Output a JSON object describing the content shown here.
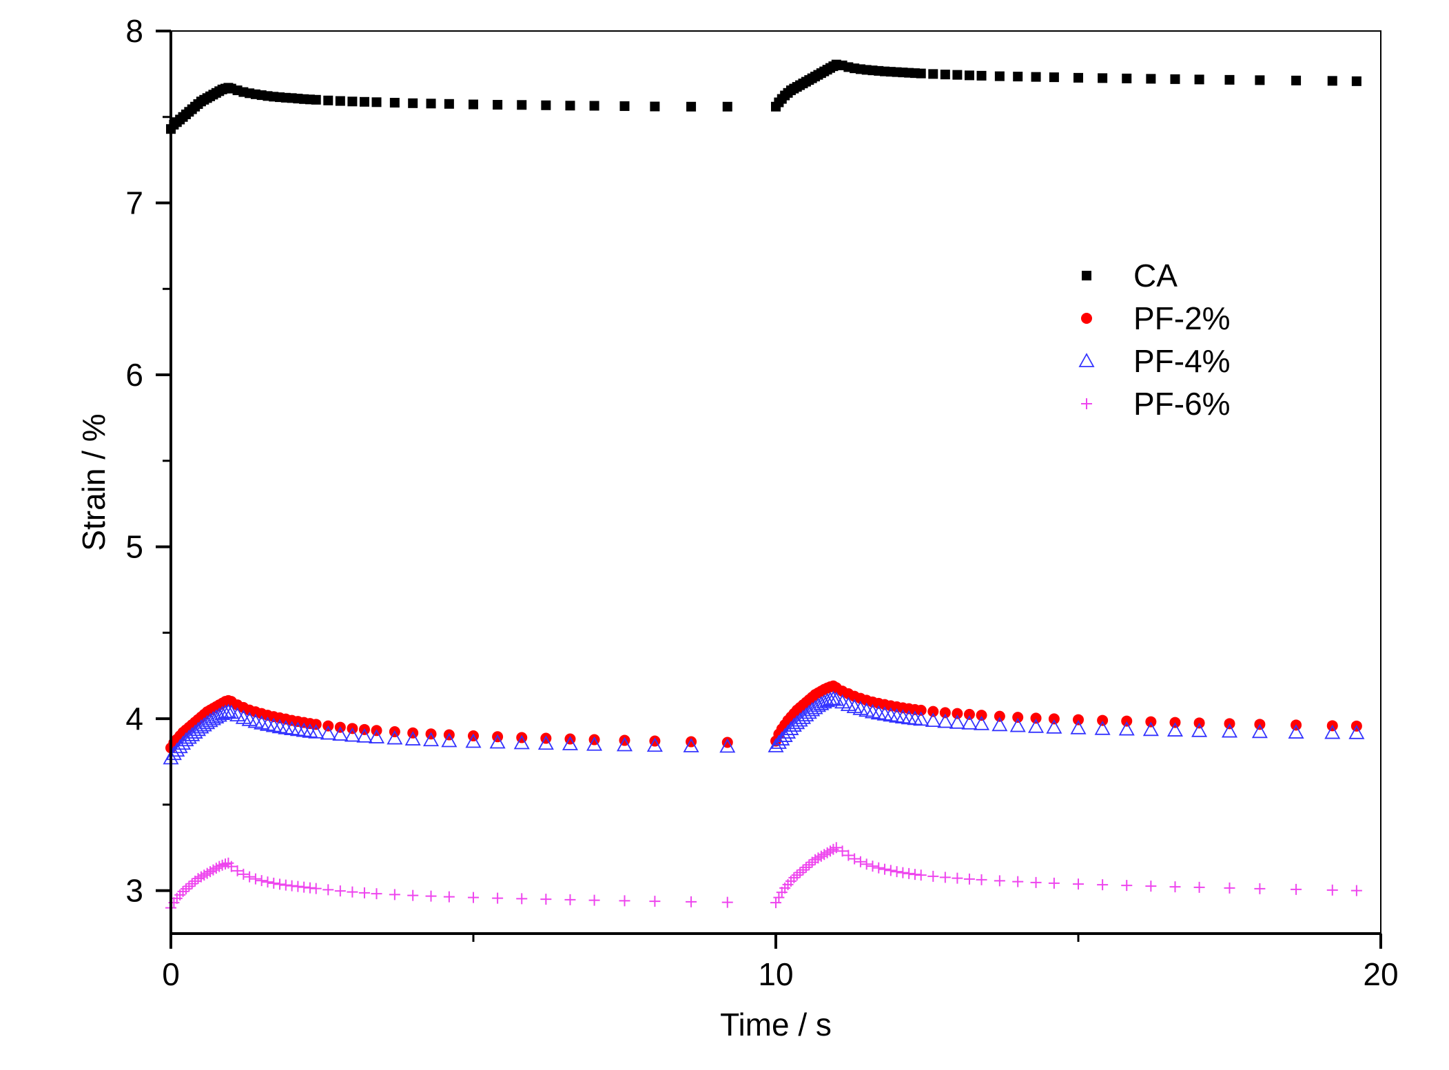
{
  "chart_data": {
    "type": "scatter",
    "title": "",
    "xlabel": "Time / s",
    "ylabel": "Strain / %",
    "xlim": [
      0,
      20
    ],
    "ylim": [
      2.75,
      8
    ],
    "xticks": [
      0,
      10,
      20
    ],
    "yticks": [
      3,
      4,
      5,
      6,
      7,
      8
    ],
    "legend_position": "top-right",
    "series": [
      {
        "name": "CA",
        "marker": "square",
        "color": "#000000",
        "x": [
          0.0,
          0.05,
          0.1,
          0.15,
          0.2,
          0.25,
          0.3,
          0.35,
          0.4,
          0.45,
          0.5,
          0.55,
          0.6,
          0.65,
          0.7,
          0.75,
          0.8,
          0.85,
          0.9,
          0.95,
          1.0,
          1.1,
          1.2,
          1.3,
          1.4,
          1.5,
          1.6,
          1.7,
          1.8,
          1.9,
          2.0,
          2.1,
          2.2,
          2.3,
          2.4,
          2.6,
          2.8,
          3.0,
          3.2,
          3.4,
          3.7,
          4.0,
          4.3,
          4.6,
          5.0,
          5.4,
          5.8,
          6.2,
          6.6,
          7.0,
          7.5,
          8.0,
          8.6,
          9.2,
          10.0,
          10.05,
          10.1,
          10.15,
          10.2,
          10.25,
          10.3,
          10.35,
          10.4,
          10.45,
          10.5,
          10.55,
          10.6,
          10.65,
          10.7,
          10.75,
          10.8,
          10.85,
          10.9,
          10.95,
          11.0,
          11.1,
          11.2,
          11.3,
          11.4,
          11.5,
          11.6,
          11.7,
          11.8,
          11.9,
          12.0,
          12.1,
          12.2,
          12.3,
          12.4,
          12.6,
          12.8,
          13.0,
          13.2,
          13.4,
          13.7,
          14.0,
          14.3,
          14.6,
          15.0,
          15.4,
          15.8,
          16.2,
          16.6,
          17.0,
          17.5,
          18.0,
          18.6,
          19.2,
          19.6
        ],
        "values": [
          7.43,
          7.455,
          7.47,
          7.485,
          7.5,
          7.515,
          7.53,
          7.545,
          7.56,
          7.575,
          7.59,
          7.6,
          7.61,
          7.62,
          7.63,
          7.64,
          7.65,
          7.66,
          7.665,
          7.67,
          7.665,
          7.655,
          7.645,
          7.638,
          7.632,
          7.627,
          7.622,
          7.618,
          7.615,
          7.612,
          7.61,
          7.607,
          7.604,
          7.602,
          7.6,
          7.596,
          7.593,
          7.59,
          7.588,
          7.586,
          7.583,
          7.58,
          7.578,
          7.576,
          7.573,
          7.571,
          7.57,
          7.568,
          7.566,
          7.565,
          7.563,
          7.561,
          7.56,
          7.56,
          7.56,
          7.585,
          7.605,
          7.625,
          7.64,
          7.655,
          7.665,
          7.675,
          7.685,
          7.695,
          7.705,
          7.715,
          7.725,
          7.735,
          7.745,
          7.755,
          7.765,
          7.775,
          7.785,
          7.795,
          7.805,
          7.8,
          7.79,
          7.783,
          7.778,
          7.774,
          7.771,
          7.768,
          7.765,
          7.763,
          7.761,
          7.759,
          7.757,
          7.755,
          7.753,
          7.75,
          7.747,
          7.745,
          7.742,
          7.74,
          7.737,
          7.735,
          7.733,
          7.731,
          7.728,
          7.726,
          7.724,
          7.722,
          7.72,
          7.718,
          7.716,
          7.714,
          7.712,
          7.71,
          7.708
        ]
      },
      {
        "name": "PF-2%",
        "marker": "circle",
        "color": "#ff0000",
        "x": [
          0.0,
          0.05,
          0.1,
          0.15,
          0.2,
          0.25,
          0.3,
          0.35,
          0.4,
          0.45,
          0.5,
          0.55,
          0.6,
          0.65,
          0.7,
          0.75,
          0.8,
          0.85,
          0.9,
          0.95,
          1.0,
          1.1,
          1.2,
          1.3,
          1.4,
          1.5,
          1.6,
          1.7,
          1.8,
          1.9,
          2.0,
          2.1,
          2.2,
          2.3,
          2.4,
          2.6,
          2.8,
          3.0,
          3.2,
          3.4,
          3.7,
          4.0,
          4.3,
          4.6,
          5.0,
          5.4,
          5.8,
          6.2,
          6.6,
          7.0,
          7.5,
          8.0,
          8.6,
          9.2,
          10.0,
          10.05,
          10.1,
          10.15,
          10.2,
          10.25,
          10.3,
          10.35,
          10.4,
          10.45,
          10.5,
          10.55,
          10.6,
          10.65,
          10.7,
          10.75,
          10.8,
          10.85,
          10.9,
          10.95,
          11.0,
          11.1,
          11.2,
          11.3,
          11.4,
          11.5,
          11.6,
          11.7,
          11.8,
          11.9,
          12.0,
          12.1,
          12.2,
          12.3,
          12.4,
          12.6,
          12.8,
          13.0,
          13.2,
          13.4,
          13.7,
          14.0,
          14.3,
          14.6,
          15.0,
          15.4,
          15.8,
          16.2,
          16.6,
          17.0,
          17.5,
          18.0,
          18.6,
          19.2,
          19.6
        ],
        "values": [
          3.83,
          3.86,
          3.88,
          3.9,
          3.92,
          3.935,
          3.95,
          3.965,
          3.98,
          3.995,
          4.01,
          4.025,
          4.04,
          4.05,
          4.06,
          4.07,
          4.08,
          4.09,
          4.1,
          4.105,
          4.1,
          4.08,
          4.065,
          4.05,
          4.04,
          4.03,
          4.02,
          4.012,
          4.005,
          3.998,
          3.99,
          3.984,
          3.978,
          3.972,
          3.967,
          3.958,
          3.95,
          3.943,
          3.937,
          3.931,
          3.924,
          3.917,
          3.911,
          3.906,
          3.9,
          3.895,
          3.89,
          3.886,
          3.882,
          3.878,
          3.874,
          3.87,
          3.866,
          3.862,
          3.87,
          3.91,
          3.94,
          3.965,
          3.99,
          4.01,
          4.03,
          4.05,
          4.065,
          4.08,
          4.095,
          4.11,
          4.125,
          4.14,
          4.15,
          4.16,
          4.17,
          4.178,
          4.185,
          4.19,
          4.18,
          4.16,
          4.145,
          4.13,
          4.118,
          4.107,
          4.097,
          4.089,
          4.082,
          4.075,
          4.069,
          4.063,
          4.058,
          4.053,
          4.049,
          4.042,
          4.035,
          4.03,
          4.025,
          4.02,
          4.014,
          4.008,
          4.003,
          3.999,
          3.994,
          3.99,
          3.986,
          3.982,
          3.978,
          3.975,
          3.971,
          3.967,
          3.963,
          3.959,
          3.957
        ]
      },
      {
        "name": "PF-4%",
        "marker": "triangle",
        "color": "#3333ff",
        "x": [
          0.0,
          0.05,
          0.1,
          0.15,
          0.2,
          0.25,
          0.3,
          0.35,
          0.4,
          0.45,
          0.5,
          0.55,
          0.6,
          0.65,
          0.7,
          0.75,
          0.8,
          0.85,
          0.9,
          0.95,
          1.0,
          1.1,
          1.2,
          1.3,
          1.4,
          1.5,
          1.6,
          1.7,
          1.8,
          1.9,
          2.0,
          2.1,
          2.2,
          2.3,
          2.4,
          2.6,
          2.8,
          3.0,
          3.2,
          3.4,
          3.7,
          4.0,
          4.3,
          4.6,
          5.0,
          5.4,
          5.8,
          6.2,
          6.6,
          7.0,
          7.5,
          8.0,
          8.6,
          9.2,
          10.0,
          10.05,
          10.1,
          10.15,
          10.2,
          10.25,
          10.3,
          10.35,
          10.4,
          10.45,
          10.5,
          10.55,
          10.6,
          10.65,
          10.7,
          10.75,
          10.8,
          10.85,
          10.9,
          10.95,
          11.0,
          11.1,
          11.2,
          11.3,
          11.4,
          11.5,
          11.6,
          11.7,
          11.8,
          11.9,
          12.0,
          12.1,
          12.2,
          12.3,
          12.4,
          12.6,
          12.8,
          13.0,
          13.2,
          13.4,
          13.7,
          14.0,
          14.3,
          14.6,
          15.0,
          15.4,
          15.8,
          16.2,
          16.6,
          17.0,
          17.5,
          18.0,
          18.6,
          19.2,
          19.6
        ],
        "values": [
          3.77,
          3.795,
          3.815,
          3.835,
          3.855,
          3.875,
          3.89,
          3.905,
          3.92,
          3.935,
          3.95,
          3.962,
          3.975,
          3.987,
          3.998,
          4.008,
          4.018,
          4.028,
          4.035,
          4.04,
          4.035,
          4.02,
          4.005,
          3.993,
          3.982,
          3.973,
          3.965,
          3.958,
          3.951,
          3.945,
          3.94,
          3.935,
          3.93,
          3.925,
          3.921,
          3.914,
          3.908,
          3.902,
          3.897,
          3.892,
          3.886,
          3.88,
          3.875,
          3.87,
          3.866,
          3.862,
          3.858,
          3.855,
          3.852,
          3.849,
          3.846,
          3.843,
          3.84,
          3.838,
          3.84,
          3.86,
          3.88,
          3.9,
          3.92,
          3.94,
          3.96,
          3.975,
          3.99,
          4.005,
          4.02,
          4.035,
          4.05,
          4.062,
          4.075,
          4.085,
          4.095,
          4.103,
          4.11,
          4.115,
          4.11,
          4.095,
          4.08,
          4.068,
          4.057,
          4.047,
          4.038,
          4.031,
          4.025,
          4.019,
          4.013,
          4.008,
          4.003,
          3.999,
          3.995,
          3.988,
          3.982,
          3.977,
          3.973,
          3.969,
          3.963,
          3.958,
          3.953,
          3.949,
          3.945,
          3.941,
          3.938,
          3.935,
          3.932,
          3.929,
          3.926,
          3.923,
          3.92,
          3.918,
          3.917
        ]
      },
      {
        "name": "PF-6%",
        "marker": "plus",
        "color": "#ee44ee",
        "x": [
          0.0,
          0.05,
          0.1,
          0.15,
          0.2,
          0.25,
          0.3,
          0.35,
          0.4,
          0.45,
          0.5,
          0.55,
          0.6,
          0.65,
          0.7,
          0.75,
          0.8,
          0.85,
          0.9,
          0.95,
          1.0,
          1.1,
          1.2,
          1.3,
          1.4,
          1.5,
          1.6,
          1.7,
          1.8,
          1.9,
          2.0,
          2.1,
          2.2,
          2.3,
          2.4,
          2.6,
          2.8,
          3.0,
          3.2,
          3.4,
          3.7,
          4.0,
          4.3,
          4.6,
          5.0,
          5.4,
          5.8,
          6.2,
          6.6,
          7.0,
          7.5,
          8.0,
          8.6,
          9.2,
          10.0,
          10.05,
          10.1,
          10.15,
          10.2,
          10.25,
          10.3,
          10.35,
          10.4,
          10.45,
          10.5,
          10.55,
          10.6,
          10.65,
          10.7,
          10.75,
          10.8,
          10.85,
          10.9,
          10.95,
          11.0,
          11.1,
          11.2,
          11.3,
          11.4,
          11.5,
          11.6,
          11.7,
          11.8,
          11.9,
          12.0,
          12.1,
          12.2,
          12.3,
          12.4,
          12.6,
          12.8,
          13.0,
          13.2,
          13.4,
          13.7,
          14.0,
          14.3,
          14.6,
          15.0,
          15.4,
          15.8,
          16.2,
          16.6,
          17.0,
          17.5,
          18.0,
          18.6,
          19.2,
          19.6
        ],
        "values": [
          2.9,
          2.93,
          2.955,
          2.975,
          2.995,
          3.01,
          3.025,
          3.04,
          3.055,
          3.07,
          3.08,
          3.09,
          3.1,
          3.11,
          3.12,
          3.13,
          3.14,
          3.148,
          3.155,
          3.16,
          3.14,
          3.115,
          3.095,
          3.08,
          3.068,
          3.058,
          3.05,
          3.043,
          3.037,
          3.032,
          3.028,
          3.024,
          3.02,
          3.016,
          3.012,
          3.005,
          2.998,
          2.992,
          2.987,
          2.982,
          2.977,
          2.972,
          2.968,
          2.964,
          2.96,
          2.956,
          2.953,
          2.95,
          2.947,
          2.944,
          2.941,
          2.938,
          2.935,
          2.932,
          2.93,
          2.96,
          2.99,
          3.015,
          3.035,
          3.055,
          3.075,
          3.09,
          3.105,
          3.12,
          3.135,
          3.15,
          3.165,
          3.18,
          3.19,
          3.2,
          3.21,
          3.22,
          3.23,
          3.24,
          3.25,
          3.23,
          3.205,
          3.185,
          3.168,
          3.154,
          3.142,
          3.132,
          3.124,
          3.117,
          3.11,
          3.104,
          3.099,
          3.094,
          3.09,
          3.083,
          3.077,
          3.072,
          3.067,
          3.063,
          3.057,
          3.052,
          3.047,
          3.043,
          3.038,
          3.034,
          3.03,
          3.026,
          3.022,
          3.019,
          3.015,
          3.011,
          3.007,
          3.003,
          3.0
        ]
      }
    ]
  }
}
